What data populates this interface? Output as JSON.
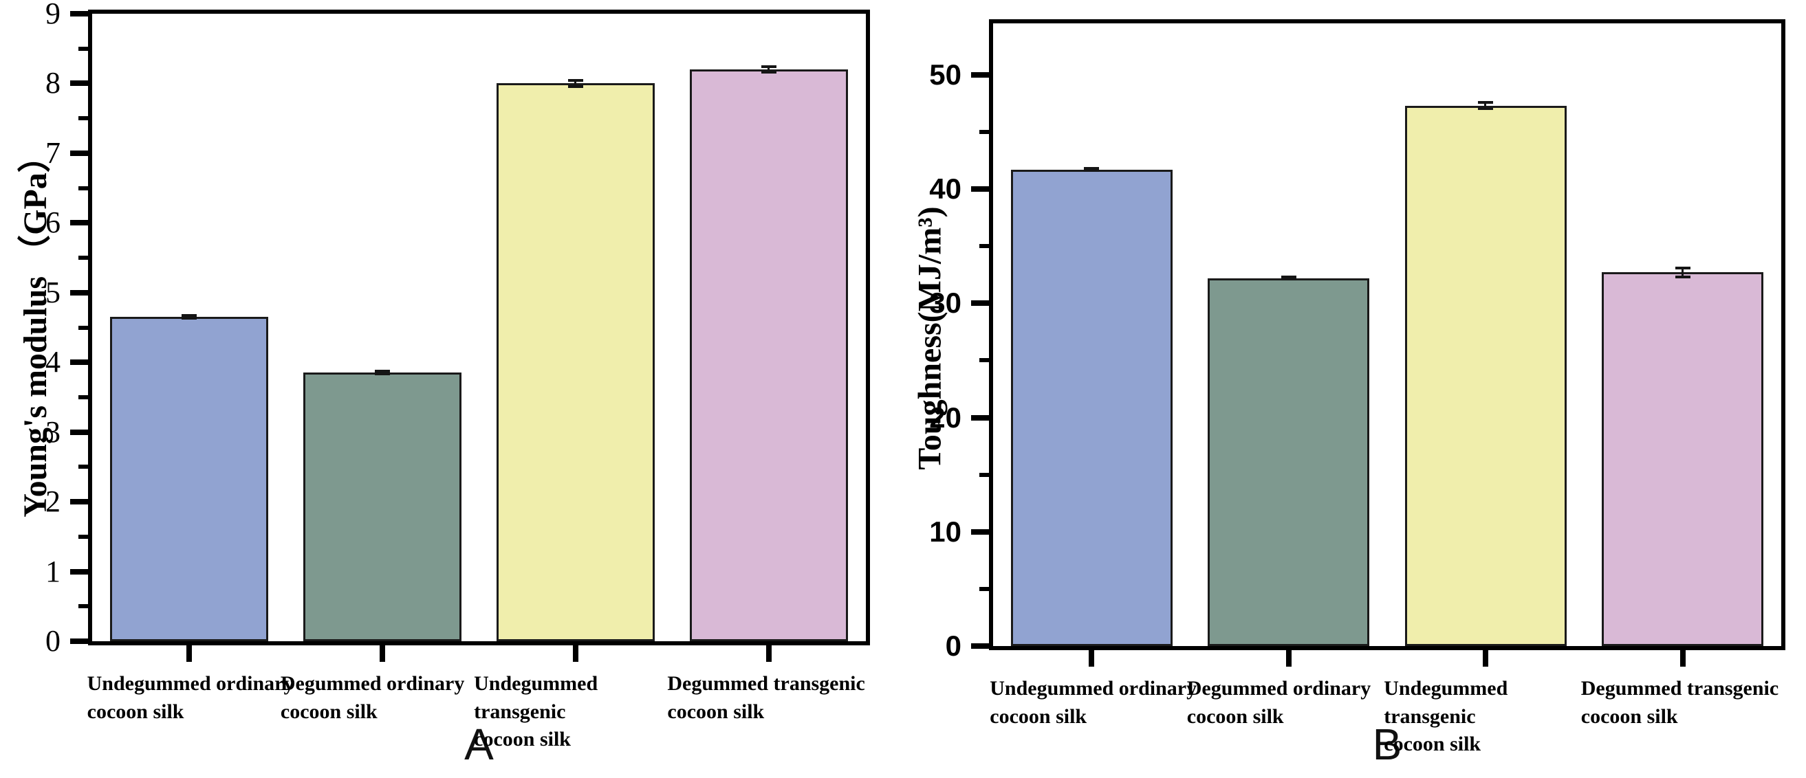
{
  "figure": {
    "background": "#ffffff",
    "axis_color": "#000000",
    "panels": [
      "A",
      "B"
    ]
  },
  "chart_data": [
    {
      "panel_label": "A",
      "type": "bar",
      "title": "",
      "xlabel": "",
      "ylabel": "Young's modulus （GPa）",
      "categories": [
        "Undegummed ordinary\ncocoon silk",
        "Degummed ordinary\ncocoon silk",
        "Undegummed transgenic\ncocoon silk",
        "Degummed transgenic\ncocoon silk"
      ],
      "values": [
        4.65,
        3.85,
        8.0,
        8.2
      ],
      "errors": [
        0.04,
        0.04,
        0.06,
        0.06
      ],
      "ylim": [
        0,
        9
      ],
      "yticks": [
        0,
        1,
        2,
        3,
        4,
        5,
        6,
        7,
        8,
        9
      ],
      "minor_step": 0.5,
      "grid": false,
      "legend": "none",
      "bar_colors": [
        "#91a3d1",
        "#7e998f",
        "#f0eeac",
        "#d9b9d6"
      ],
      "bar_border": "#1a1a1a"
    },
    {
      "panel_label": "B",
      "type": "bar",
      "title": "",
      "xlabel": "",
      "ylabel": "Toughness(MJ/m³)",
      "categories": [
        "Undegummed ordinary\ncocoon silk",
        "Degummed ordinary\ncocoon silk",
        "Undegummed transgenic\ncocoon silk",
        "Degummed transgenic\ncocoon silk"
      ],
      "values": [
        41.7,
        32.2,
        47.3,
        32.7
      ],
      "errors": [
        0.2,
        0.2,
        0.4,
        0.5
      ],
      "ylim": [
        0,
        54.5
      ],
      "yticks": [
        0,
        10,
        20,
        30,
        40,
        50
      ],
      "minor_step": 5,
      "grid": false,
      "legend": "none",
      "bar_colors": [
        "#91a3d1",
        "#7e998f",
        "#f0eeac",
        "#d9b9d6"
      ],
      "bar_border": "#1a1a1a"
    }
  ]
}
